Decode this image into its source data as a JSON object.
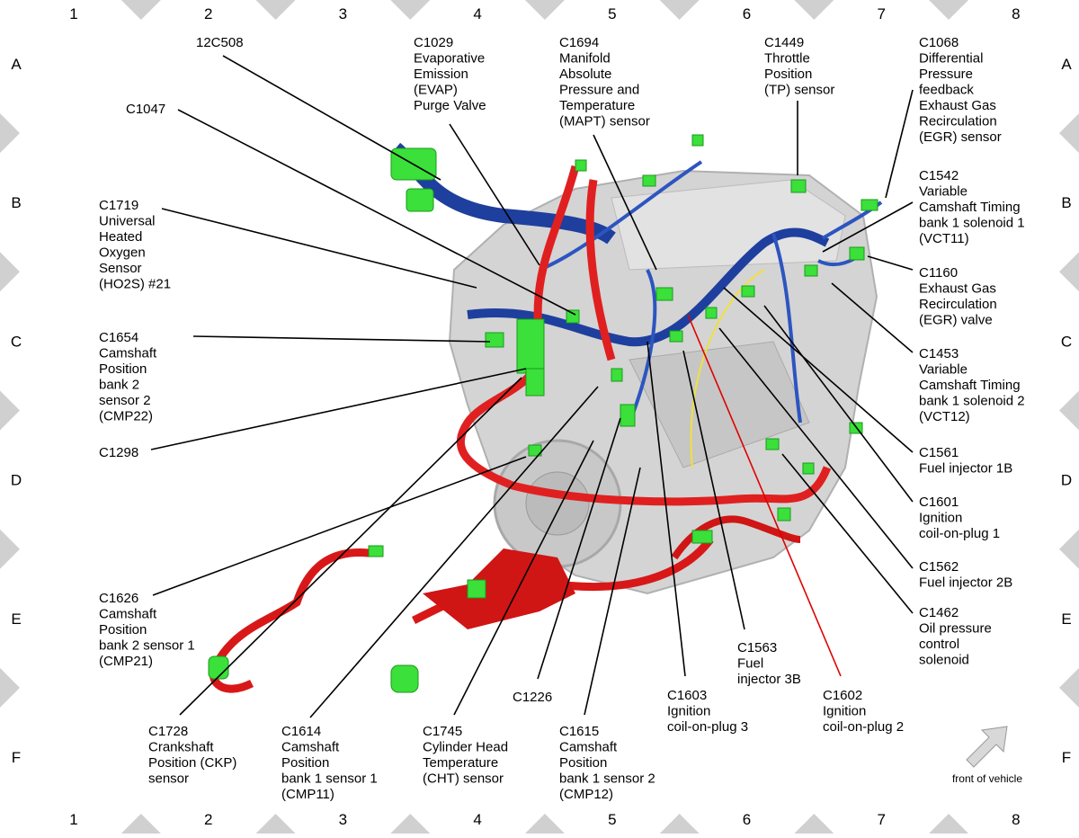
{
  "grid": {
    "columns": [
      "1",
      "2",
      "3",
      "4",
      "5",
      "6",
      "7",
      "8"
    ],
    "rows": [
      "A",
      "B",
      "C",
      "D",
      "E",
      "F"
    ]
  },
  "labels": [
    {
      "lines": [
        "12C508"
      ]
    },
    {
      "lines": [
        "C1029",
        "Evaporative",
        "Emission",
        "(EVAP)",
        "Purge Valve"
      ]
    },
    {
      "lines": [
        "C1694",
        "Manifold",
        "Absolute",
        "Pressure and",
        "Temperature",
        "(MAPT) sensor"
      ]
    },
    {
      "lines": [
        "C1449",
        "Throttle",
        "Position",
        "(TP) sensor"
      ]
    },
    {
      "lines": [
        "C1068",
        "Differential",
        "Pressure",
        "feedback",
        "Exhaust Gas",
        "Recirculation",
        "(EGR) sensor"
      ]
    },
    {
      "lines": [
        "C1047"
      ]
    },
    {
      "lines": [
        "C1719",
        "Universal",
        "Heated",
        "Oxygen",
        "Sensor",
        "(HO2S) #21"
      ]
    },
    {
      "lines": [
        "C1542",
        "Variable",
        "Camshaft Timing",
        "bank 1 solenoid 1",
        "(VCT11)"
      ]
    },
    {
      "lines": [
        "C1160",
        "Exhaust Gas",
        "Recirculation",
        "(EGR) valve"
      ]
    },
    {
      "lines": [
        "C1654",
        "Camshaft",
        "Position",
        "bank 2",
        "sensor 2",
        "(CMP22)"
      ]
    },
    {
      "lines": [
        "C1453",
        "Variable",
        "Camshaft Timing",
        "bank 1 solenoid 2",
        "(VCT12)"
      ]
    },
    {
      "lines": [
        "C1298"
      ]
    },
    {
      "lines": [
        "C1561",
        "Fuel injector 1B"
      ]
    },
    {
      "lines": [
        "C1601",
        "Ignition",
        "coil-on-plug 1"
      ]
    },
    {
      "lines": [
        "C1562",
        "Fuel injector 2B"
      ]
    },
    {
      "lines": [
        "C1462",
        "Oil pressure",
        "control",
        "solenoid"
      ]
    },
    {
      "lines": [
        "C1626",
        "Camshaft",
        "Position",
        "bank 2 sensor 1",
        "(CMP21)"
      ]
    },
    {
      "lines": [
        "C1563",
        "Fuel",
        "injector 3B"
      ]
    },
    {
      "lines": [
        "C1602",
        "Ignition",
        "coil-on-plug 2"
      ],
      "color": "#e00000"
    },
    {
      "lines": [
        "C1226"
      ]
    },
    {
      "lines": [
        "C1603",
        "Ignition",
        "coil-on-plug 3"
      ]
    },
    {
      "lines": [
        "C1728",
        "Crankshaft",
        "Position (CKP)",
        "sensor"
      ]
    },
    {
      "lines": [
        "C1614",
        "Camshaft",
        "Position",
        "bank 1 sensor 1",
        "(CMP11)"
      ]
    },
    {
      "lines": [
        "C1745",
        "Cylinder Head",
        "Temperature",
        "(CHT) sensor"
      ]
    },
    {
      "lines": [
        "C1615",
        "Camshaft",
        "Position",
        "bank 1 sensor 2",
        "(CMP12)"
      ]
    }
  ],
  "front_label": "front of vehicle"
}
